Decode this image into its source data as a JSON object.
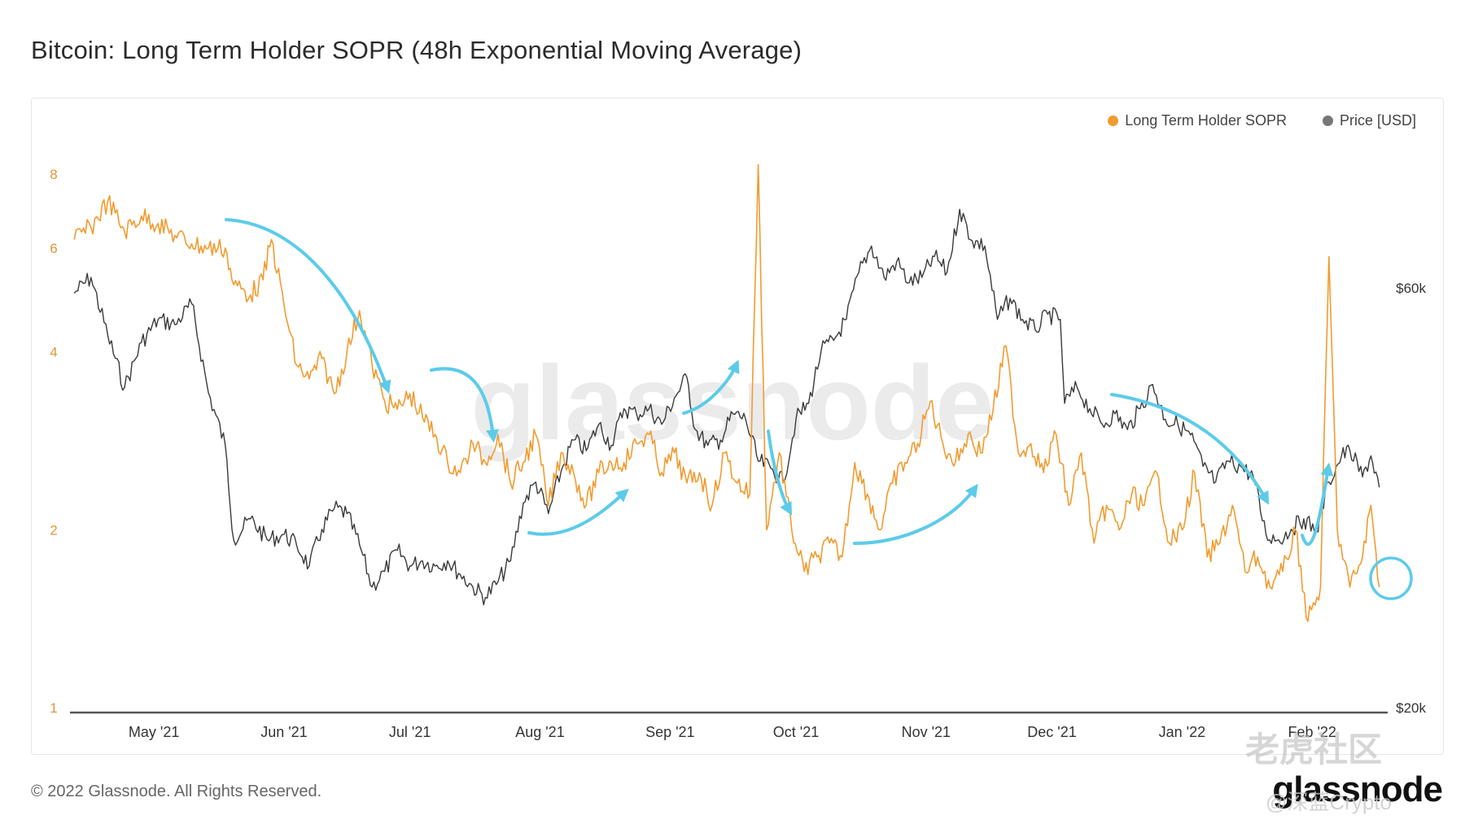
{
  "title": "Bitcoin: Long Term Holder SOPR (48h Exponential Moving Average)",
  "footer": "© 2022 Glassnode. All Rights Reserved.",
  "brand": "glassnode",
  "watermark_center": "glassnode",
  "watermark_top": "老虎社区",
  "watermark_bottom": "@深蓝Crypto",
  "colors": {
    "sopr": "#f29b2f",
    "price": "#3a3a3a",
    "arrow": "#5ccbea",
    "left_axis": "#e0963a",
    "right_axis": "#333333"
  },
  "chart_data": {
    "type": "line",
    "legend_position": "top-right",
    "x_ticks": [
      "May '21",
      "Jun '21",
      "Jul '21",
      "Aug '21",
      "Sep '21",
      "Oct '21",
      "Nov '21",
      "Dec '21",
      "Jan '22",
      "Feb '22"
    ],
    "y_left_ticks": [
      "1",
      "2",
      "4",
      "6",
      "8"
    ],
    "y_left_scale": "log",
    "y_left_range": [
      1,
      8.5
    ],
    "y_right_ticks": [
      "$20k",
      "$60k"
    ],
    "y_right_range": [
      20000,
      70000
    ],
    "series": [
      {
        "name": "Long Term Holder SOPR",
        "axis": "left",
        "points": [
          [
            "2021-04-12",
            6.2
          ],
          [
            "2021-04-16",
            6.5
          ],
          [
            "2021-04-20",
            7.2
          ],
          [
            "2021-04-24",
            6.4
          ],
          [
            "2021-04-28",
            6.8
          ],
          [
            "2021-05-02",
            6.6
          ],
          [
            "2021-05-06",
            6.3
          ],
          [
            "2021-05-10",
            6.1
          ],
          [
            "2021-05-14",
            6.0
          ],
          [
            "2021-05-18",
            6.0
          ],
          [
            "2021-05-20",
            5.2
          ],
          [
            "2021-05-24",
            5.0
          ],
          [
            "2021-05-27",
            5.3
          ],
          [
            "2021-05-29",
            6.2
          ],
          [
            "2021-06-01",
            4.8
          ],
          [
            "2021-06-04",
            3.8
          ],
          [
            "2021-06-07",
            3.6
          ],
          [
            "2021-06-10",
            3.9
          ],
          [
            "2021-06-13",
            3.4
          ],
          [
            "2021-06-16",
            4.0
          ],
          [
            "2021-06-19",
            4.7
          ],
          [
            "2021-06-22",
            3.8
          ],
          [
            "2021-06-25",
            3.3
          ],
          [
            "2021-06-28",
            3.2
          ],
          [
            "2021-07-01",
            3.4
          ],
          [
            "2021-07-04",
            3.1
          ],
          [
            "2021-07-07",
            2.9
          ],
          [
            "2021-07-10",
            2.6
          ],
          [
            "2021-07-13",
            2.5
          ],
          [
            "2021-07-16",
            2.8
          ],
          [
            "2021-07-19",
            2.6
          ],
          [
            "2021-07-22",
            2.9
          ],
          [
            "2021-07-25",
            2.4
          ],
          [
            "2021-07-28",
            2.6
          ],
          [
            "2021-07-31",
            2.9
          ],
          [
            "2021-08-03",
            2.2
          ],
          [
            "2021-08-06",
            2.7
          ],
          [
            "2021-08-09",
            2.5
          ],
          [
            "2021-08-12",
            2.2
          ],
          [
            "2021-08-15",
            2.5
          ],
          [
            "2021-08-18",
            2.6
          ],
          [
            "2021-08-21",
            2.6
          ],
          [
            "2021-08-24",
            2.8
          ],
          [
            "2021-08-27",
            2.9
          ],
          [
            "2021-08-30",
            2.5
          ],
          [
            "2021-09-02",
            2.7
          ],
          [
            "2021-09-05",
            2.4
          ],
          [
            "2021-09-08",
            2.5
          ],
          [
            "2021-09-11",
            2.2
          ],
          [
            "2021-09-14",
            2.7
          ],
          [
            "2021-09-17",
            2.4
          ],
          [
            "2021-09-20",
            2.3
          ],
          [
            "2021-09-22",
            8.3
          ],
          [
            "2021-09-24",
            2.0
          ],
          [
            "2021-09-27",
            2.7
          ],
          [
            "2021-09-30",
            2.0
          ],
          [
            "2021-10-03",
            1.7
          ],
          [
            "2021-10-06",
            1.8
          ],
          [
            "2021-10-09",
            1.9
          ],
          [
            "2021-10-12",
            1.8
          ],
          [
            "2021-10-15",
            2.6
          ],
          [
            "2021-10-18",
            2.3
          ],
          [
            "2021-10-21",
            2.0
          ],
          [
            "2021-10-24",
            2.4
          ],
          [
            "2021-10-27",
            2.6
          ],
          [
            "2021-10-30",
            2.8
          ],
          [
            "2021-11-02",
            3.3
          ],
          [
            "2021-11-05",
            2.8
          ],
          [
            "2021-11-08",
            2.6
          ],
          [
            "2021-11-11",
            2.9
          ],
          [
            "2021-11-14",
            2.7
          ],
          [
            "2021-11-17",
            3.2
          ],
          [
            "2021-11-20",
            4.1
          ],
          [
            "2021-11-23",
            2.7
          ],
          [
            "2021-11-26",
            2.8
          ],
          [
            "2021-11-29",
            2.5
          ],
          [
            "2021-12-02",
            2.9
          ],
          [
            "2021-12-05",
            2.2
          ],
          [
            "2021-12-08",
            2.7
          ],
          [
            "2021-12-11",
            1.9
          ],
          [
            "2021-12-14",
            2.2
          ],
          [
            "2021-12-17",
            2.0
          ],
          [
            "2021-12-20",
            2.3
          ],
          [
            "2021-12-23",
            2.2
          ],
          [
            "2021-12-26",
            2.5
          ],
          [
            "2021-12-29",
            1.9
          ],
          [
            "2022-01-01",
            2.0
          ],
          [
            "2022-01-04",
            2.5
          ],
          [
            "2022-01-07",
            1.8
          ],
          [
            "2022-01-10",
            1.9
          ],
          [
            "2022-01-13",
            2.2
          ],
          [
            "2022-01-16",
            1.7
          ],
          [
            "2022-01-19",
            1.8
          ],
          [
            "2022-01-22",
            1.6
          ],
          [
            "2022-01-25",
            1.7
          ],
          [
            "2022-01-28",
            2.0
          ],
          [
            "2022-01-31",
            1.4
          ],
          [
            "2022-02-03",
            1.6
          ],
          [
            "2022-02-05",
            5.8
          ],
          [
            "2022-02-07",
            2.0
          ],
          [
            "2022-02-10",
            1.6
          ],
          [
            "2022-02-13",
            1.8
          ],
          [
            "2022-02-15",
            2.2
          ],
          [
            "2022-02-17",
            1.6
          ]
        ]
      },
      {
        "name": "Price [USD]",
        "axis": "right",
        "points": [
          [
            "2021-04-12",
            59500
          ],
          [
            "2021-04-16",
            61000
          ],
          [
            "2021-04-20",
            55500
          ],
          [
            "2021-04-24",
            50500
          ],
          [
            "2021-04-28",
            54800
          ],
          [
            "2021-05-02",
            57000
          ],
          [
            "2021-05-06",
            56500
          ],
          [
            "2021-05-10",
            58500
          ],
          [
            "2021-05-14",
            50000
          ],
          [
            "2021-05-18",
            45000
          ],
          [
            "2021-05-20",
            36000
          ],
          [
            "2021-05-24",
            38000
          ],
          [
            "2021-05-28",
            36000
          ],
          [
            "2021-06-01",
            36500
          ],
          [
            "2021-06-04",
            35500
          ],
          [
            "2021-06-07",
            33500
          ],
          [
            "2021-06-10",
            37000
          ],
          [
            "2021-06-13",
            39000
          ],
          [
            "2021-06-16",
            38500
          ],
          [
            "2021-06-19",
            35500
          ],
          [
            "2021-06-22",
            31500
          ],
          [
            "2021-06-25",
            33000
          ],
          [
            "2021-06-28",
            35000
          ],
          [
            "2021-07-01",
            33500
          ],
          [
            "2021-07-04",
            34000
          ],
          [
            "2021-07-07",
            33500
          ],
          [
            "2021-07-10",
            34000
          ],
          [
            "2021-07-13",
            32700
          ],
          [
            "2021-07-16",
            31500
          ],
          [
            "2021-07-19",
            30500
          ],
          [
            "2021-07-22",
            32000
          ],
          [
            "2021-07-25",
            34000
          ],
          [
            "2021-07-28",
            39500
          ],
          [
            "2021-07-31",
            41500
          ],
          [
            "2021-08-03",
            38500
          ],
          [
            "2021-08-06",
            42500
          ],
          [
            "2021-08-09",
            45500
          ],
          [
            "2021-08-12",
            44500
          ],
          [
            "2021-08-15",
            47000
          ],
          [
            "2021-08-18",
            45000
          ],
          [
            "2021-08-21",
            48500
          ],
          [
            "2021-08-24",
            48000
          ],
          [
            "2021-08-27",
            48500
          ],
          [
            "2021-08-30",
            47000
          ],
          [
            "2021-09-02",
            49500
          ],
          [
            "2021-09-05",
            51500
          ],
          [
            "2021-09-07",
            46500
          ],
          [
            "2021-09-10",
            45000
          ],
          [
            "2021-09-13",
            45500
          ],
          [
            "2021-09-16",
            48000
          ],
          [
            "2021-09-19",
            47500
          ],
          [
            "2021-09-22",
            43500
          ],
          [
            "2021-09-25",
            42800
          ],
          [
            "2021-09-28",
            41500
          ],
          [
            "2021-10-01",
            47500
          ],
          [
            "2021-10-04",
            49000
          ],
          [
            "2021-10-07",
            54000
          ],
          [
            "2021-10-10",
            55000
          ],
          [
            "2021-10-13",
            57000
          ],
          [
            "2021-10-16",
            61500
          ],
          [
            "2021-10-19",
            64000
          ],
          [
            "2021-10-22",
            61000
          ],
          [
            "2021-10-25",
            62500
          ],
          [
            "2021-10-28",
            60500
          ],
          [
            "2021-10-31",
            61000
          ],
          [
            "2021-11-03",
            63000
          ],
          [
            "2021-11-06",
            61500
          ],
          [
            "2021-11-09",
            67500
          ],
          [
            "2021-11-12",
            64500
          ],
          [
            "2021-11-15",
            64000
          ],
          [
            "2021-11-18",
            57000
          ],
          [
            "2021-11-21",
            59000
          ],
          [
            "2021-11-24",
            57000
          ],
          [
            "2021-11-27",
            56000
          ],
          [
            "2021-11-30",
            57500
          ],
          [
            "2021-12-03",
            57000
          ],
          [
            "2021-12-04",
            49000
          ],
          [
            "2021-12-07",
            50500
          ],
          [
            "2021-12-10",
            48500
          ],
          [
            "2021-12-13",
            47000
          ],
          [
            "2021-12-16",
            48000
          ],
          [
            "2021-12-19",
            46500
          ],
          [
            "2021-12-22",
            48500
          ],
          [
            "2021-12-25",
            50800
          ],
          [
            "2021-12-28",
            47500
          ],
          [
            "2021-12-31",
            47000
          ],
          [
            "2022-01-03",
            46000
          ],
          [
            "2022-01-06",
            43000
          ],
          [
            "2022-01-09",
            41500
          ],
          [
            "2022-01-12",
            43500
          ],
          [
            "2022-01-15",
            43000
          ],
          [
            "2022-01-18",
            42000
          ],
          [
            "2022-01-21",
            36500
          ],
          [
            "2022-01-24",
            36000
          ],
          [
            "2022-01-27",
            37000
          ],
          [
            "2022-01-30",
            38000
          ],
          [
            "2022-02-02",
            36800
          ],
          [
            "2022-02-05",
            41500
          ],
          [
            "2022-02-08",
            44000
          ],
          [
            "2022-02-10",
            44500
          ],
          [
            "2022-02-13",
            42000
          ],
          [
            "2022-02-15",
            44000
          ],
          [
            "2022-02-17",
            41000
          ]
        ]
      }
    ]
  }
}
